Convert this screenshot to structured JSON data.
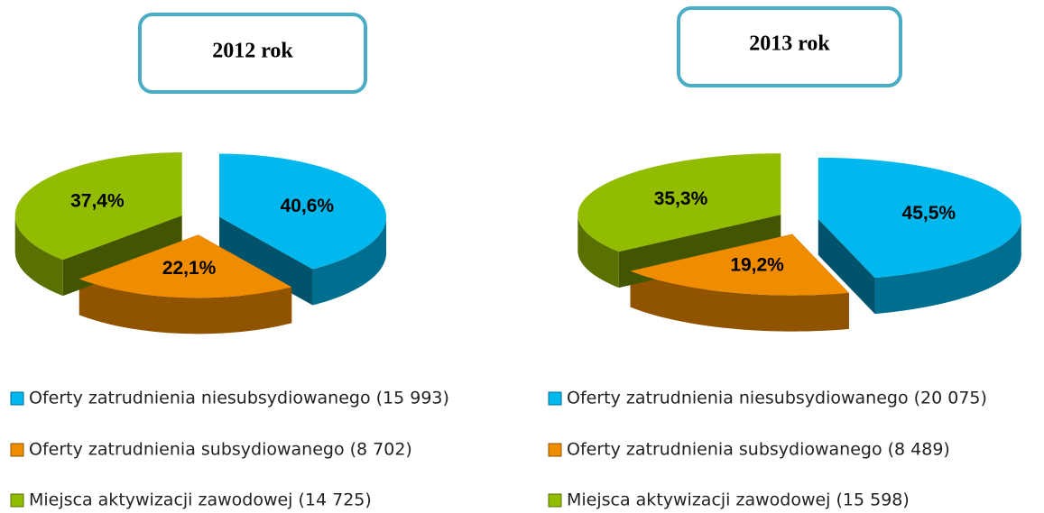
{
  "chart_data": [
    {
      "type": "pie",
      "title": "2012 rok",
      "categories": [
        "Oferty zatrudnienia niesubsydiowanego (15 993)",
        "Oferty zatrudnienia subsydiowanego (8 702)",
        "Miejsca aktywizacji zawodowej (14 725)"
      ],
      "values": [
        40.6,
        22.1,
        37.4
      ],
      "value_labels": [
        "40,6%",
        "22,1%",
        "37,4%"
      ],
      "colors": [
        "#00b8ee",
        "#f08c00",
        "#92bc00"
      ]
    },
    {
      "type": "pie",
      "title": "2013 rok",
      "categories": [
        "Oferty zatrudnienia niesubsydiowanego (20 075)",
        "Oferty zatrudnienia subsydiowanego (8 489)",
        "Miejsca aktywizacji zawodowej (15 598)"
      ],
      "values": [
        45.5,
        19.2,
        35.3
      ],
      "value_labels": [
        "45,5%",
        "19,2%",
        "35,3%"
      ],
      "colors": [
        "#00b8ee",
        "#f08c00",
        "#92bc00"
      ]
    }
  ]
}
